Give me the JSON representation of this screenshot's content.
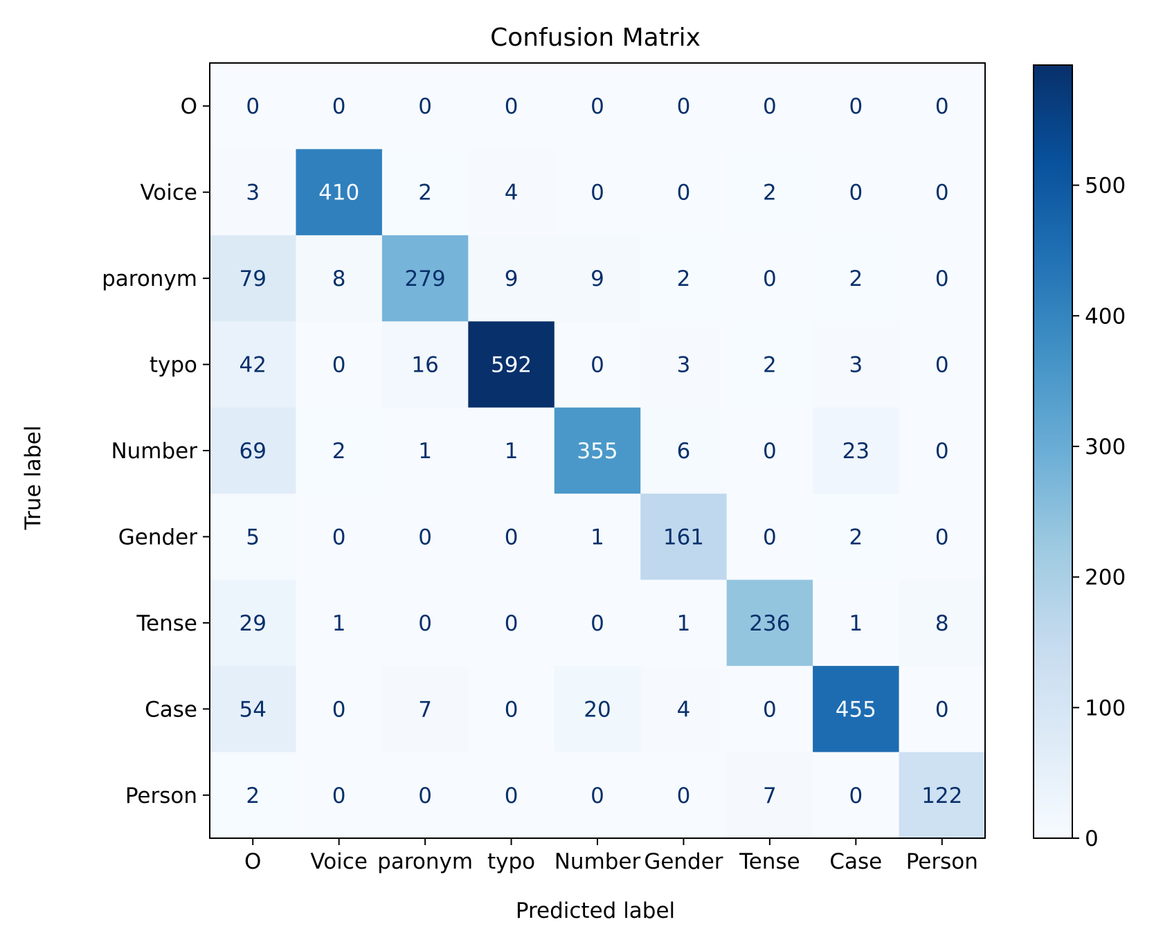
{
  "chart_data": {
    "type": "heatmap",
    "title": "Confusion Matrix",
    "xlabel": "Predicted label",
    "ylabel": "True label",
    "x_categories": [
      "O",
      "Voice",
      "paronym",
      "typo",
      "Number",
      "Gender",
      "Tense",
      "Case",
      "Person"
    ],
    "y_categories": [
      "O",
      "Voice",
      "paronym",
      "typo",
      "Number",
      "Gender",
      "Tense",
      "Case",
      "Person"
    ],
    "values": [
      [
        0,
        0,
        0,
        0,
        0,
        0,
        0,
        0,
        0
      ],
      [
        3,
        410,
        2,
        4,
        0,
        0,
        2,
        0,
        0
      ],
      [
        79,
        8,
        279,
        9,
        9,
        2,
        0,
        2,
        0
      ],
      [
        42,
        0,
        16,
        592,
        0,
        3,
        2,
        3,
        0
      ],
      [
        69,
        2,
        1,
        1,
        355,
        6,
        0,
        23,
        0
      ],
      [
        5,
        0,
        0,
        0,
        1,
        161,
        0,
        2,
        0
      ],
      [
        29,
        1,
        0,
        0,
        0,
        1,
        236,
        1,
        8
      ],
      [
        54,
        0,
        7,
        0,
        20,
        4,
        0,
        455,
        0
      ],
      [
        2,
        0,
        0,
        0,
        0,
        0,
        7,
        0,
        122
      ]
    ],
    "colormap": "Blues",
    "colorbar": {
      "range": [
        0,
        592
      ],
      "ticks": [
        0,
        100,
        200,
        300,
        400,
        500
      ]
    },
    "grid": false
  }
}
